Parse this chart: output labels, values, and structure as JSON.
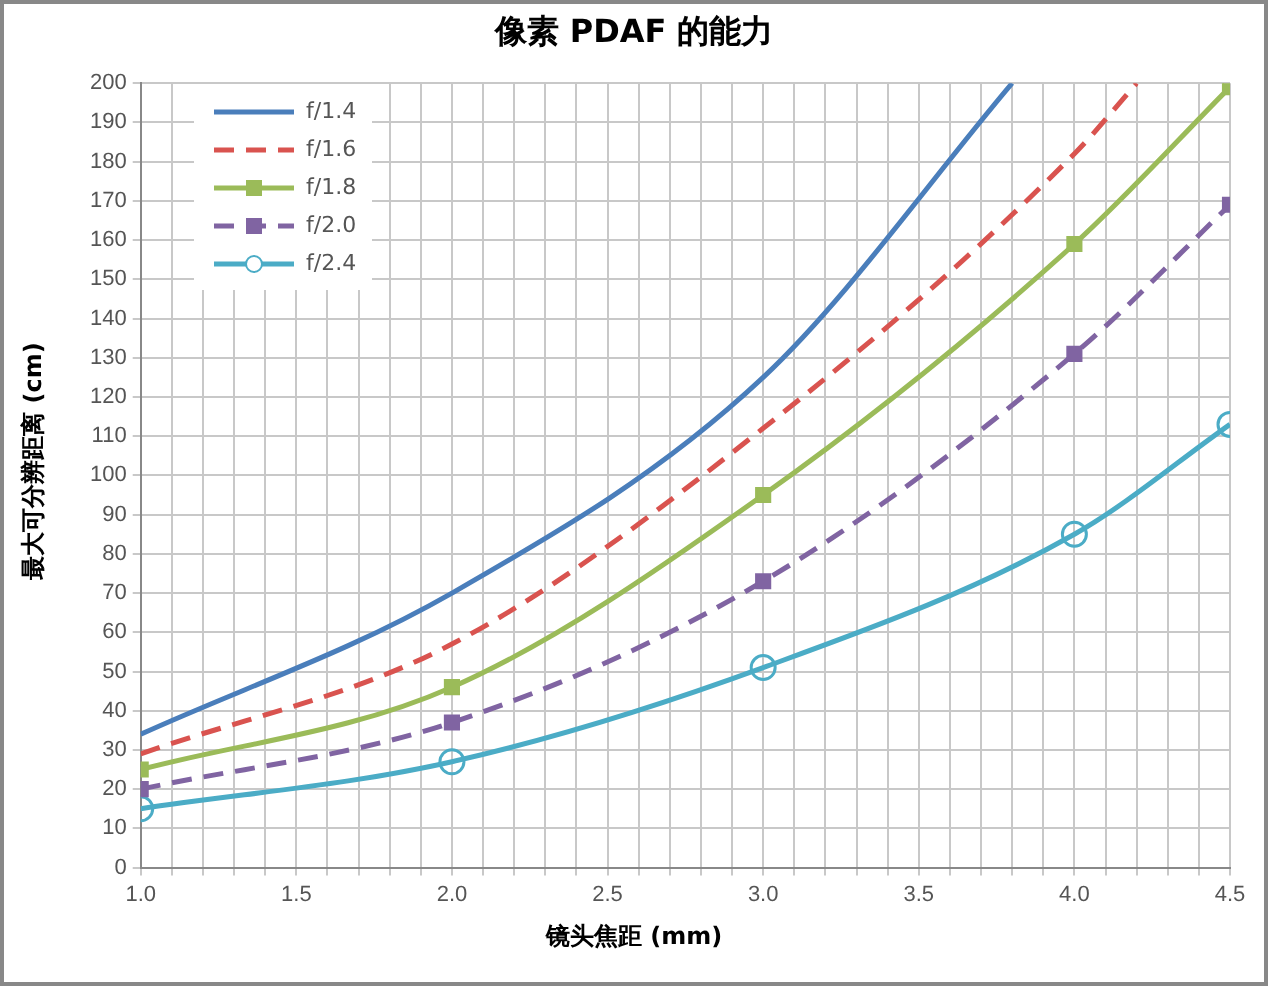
{
  "chart_data": {
    "type": "line",
    "title": "像素 PDAF 的能力",
    "xlabel": "镜头焦距 (mm)",
    "ylabel": "最大可分辨距离 (cm)",
    "xlim": [
      1,
      4.5
    ],
    "ylim": [
      0,
      200
    ],
    "xticks": [
      {
        "value": 1,
        "label": "1.0"
      },
      {
        "value": 1.1,
        "label": null
      },
      {
        "value": 1.2,
        "label": null
      },
      {
        "value": 1.3,
        "label": null
      },
      {
        "value": 1.4,
        "label": null
      },
      1.5,
      {
        "value": 1.6,
        "label": null
      },
      {
        "value": 1.7,
        "label": null
      },
      {
        "value": 1.8,
        "label": null
      },
      {
        "value": 1.9,
        "label": null
      },
      {
        "value": 2,
        "label": "2.0"
      },
      {
        "value": 2.1,
        "label": null
      },
      {
        "value": 2.2,
        "label": null
      },
      {
        "value": 2.3,
        "label": null
      },
      {
        "value": 2.4,
        "label": null
      },
      2.5,
      {
        "value": 2.6,
        "label": null
      },
      {
        "value": 2.7,
        "label": null
      },
      {
        "value": 2.8,
        "label": null
      },
      {
        "value": 2.9,
        "label": null
      },
      {
        "value": 3,
        "label": "3.0"
      },
      {
        "value": 3.1,
        "label": null
      },
      {
        "value": 3.2,
        "label": null
      },
      {
        "value": 3.3,
        "label": null
      },
      {
        "value": 3.4,
        "label": null
      },
      3.5,
      {
        "value": 3.6,
        "label": null
      },
      {
        "value": 3.7,
        "label": null
      },
      {
        "value": 3.8,
        "label": null
      },
      {
        "value": 3.9,
        "label": null
      },
      {
        "value": 4,
        "label": "4.0"
      },
      {
        "value": 4.1,
        "label": null
      },
      {
        "value": 4.2,
        "label": null
      },
      {
        "value": 4.3,
        "label": null
      },
      {
        "value": 4.4,
        "label": null
      },
      4.5
    ],
    "yticks": [
      0,
      10,
      20,
      30,
      40,
      50,
      60,
      70,
      80,
      90,
      100,
      110,
      120,
      130,
      140,
      150,
      160,
      170,
      180,
      190,
      200
    ],
    "grid": true,
    "legend": "top left",
    "series": [
      {
        "name": "f/1.4",
        "color": "#4a7ebb",
        "x": [
          1,
          2,
          3,
          3.8
        ],
        "values": [
          34,
          70,
          125,
          200
        ],
        "marker": "none",
        "line_style": "solid"
      },
      {
        "name": "f/1.6",
        "color": "#d9534f",
        "x": [
          1,
          2,
          3,
          4,
          4.2
        ],
        "values": [
          29,
          57,
          112,
          182,
          200
        ],
        "marker": "none",
        "line_style": "dashed"
      },
      {
        "name": "f/1.8",
        "color": "#9bbb59",
        "x": [
          1,
          2,
          3,
          4,
          4.5
        ],
        "values": [
          25,
          46,
          95,
          159,
          199
        ],
        "marker": "square",
        "line_style": "solid"
      },
      {
        "name": "f/2.0",
        "color": "#8064a2",
        "x": [
          1,
          2,
          3,
          4,
          4.5
        ],
        "values": [
          20,
          37,
          73,
          131,
          169
        ],
        "marker": "square",
        "line_style": "dashed"
      },
      {
        "name": "f/2.4",
        "color": "#4bacc6",
        "x": [
          1,
          2,
          3,
          4,
          4.5
        ],
        "values": [
          15,
          27,
          51,
          85,
          113
        ],
        "marker": "circle",
        "line_style": "solid"
      }
    ]
  }
}
